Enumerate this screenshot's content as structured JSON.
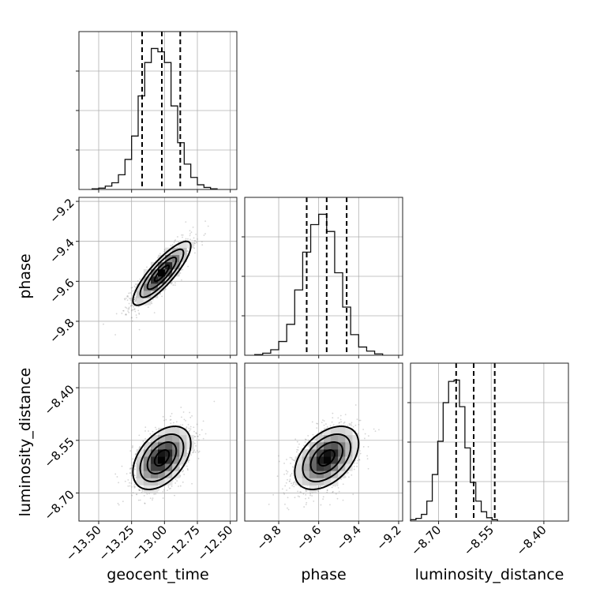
{
  "chart_data": {
    "type": "corner",
    "parameters": [
      {
        "label": "geocent_time",
        "range": [
          -13.65,
          -12.45
        ],
        "ticks": [
          -13.5,
          -13.25,
          -13.0,
          -12.75,
          -12.5
        ],
        "tick_labels": [
          "−13.50",
          "−13.25",
          "−13.00",
          "−12.75",
          "−12.50"
        ],
        "median": -13.02,
        "quantiles": [
          -13.17,
          -12.88
        ],
        "hist_bins_start": -13.55,
        "hist_bin_width": 0.05,
        "hist_counts": [
          1,
          2,
          5,
          10,
          22,
          45,
          80,
          140,
          190,
          211,
          206,
          190,
          125,
          70,
          38,
          18,
          7,
          3,
          1
        ]
      },
      {
        "label": "phase",
        "range": [
          -9.97,
          -9.18
        ],
        "ticks": [
          -9.8,
          -9.6,
          -9.4,
          -9.2
        ],
        "tick_labels": [
          "−9.8",
          "−9.6",
          "−9.4",
          "−9.2"
        ],
        "median": -9.56,
        "quantiles": [
          -9.66,
          -9.46
        ],
        "hist_bins_start": -9.92,
        "hist_bin_width": 0.04,
        "hist_counts": [
          1,
          3,
          8,
          20,
          45,
          95,
          150,
          190,
          205,
          180,
          120,
          70,
          30,
          12,
          6,
          2
        ]
      },
      {
        "label": "luminosity_distance",
        "range": [
          -8.78,
          -8.33
        ],
        "ticks": [
          -8.7,
          -8.55,
          -8.4
        ],
        "tick_labels": [
          "−8.70",
          "−8.55",
          "−8.40"
        ],
        "median": -8.6,
        "quantiles": [
          -8.65,
          -8.54
        ],
        "hist_bins_start": -8.78,
        "hist_bin_width": 0.0155,
        "hist_counts": [
          2,
          4,
          10,
          30,
          70,
          120,
          178,
          210,
          212,
          172,
          110,
          58,
          30,
          14,
          5,
          2
        ]
      }
    ],
    "pairs": [
      {
        "row": 1,
        "col": 0,
        "center": [
          -13.02,
          -9.56
        ],
        "sigma": [
          0.11,
          0.08
        ],
        "rho": 0.85
      },
      {
        "row": 2,
        "col": 0,
        "center": [
          -13.02,
          -8.6
        ],
        "sigma": [
          0.11,
          0.045
        ],
        "rho": 0.45
      },
      {
        "row": 2,
        "col": 1,
        "center": [
          -9.56,
          -8.6
        ],
        "sigma": [
          0.08,
          0.045
        ],
        "rho": 0.45
      }
    ],
    "contour_levels_sigma": [
      0.5,
      1.0,
      1.5,
      2.0
    ],
    "grid": true
  }
}
